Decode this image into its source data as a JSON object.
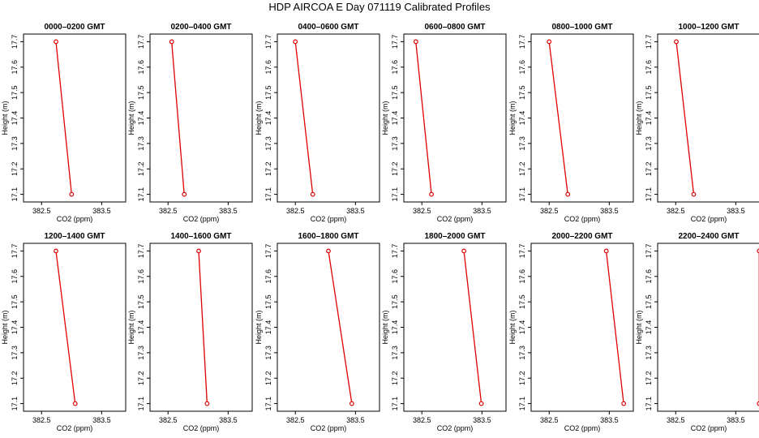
{
  "figure": {
    "title": "HDP  AIRCOA E  Day 071119  Calibrated Profiles"
  },
  "colors": {
    "series": "#dd0000",
    "axes": "#000000",
    "background": "#ffffff"
  },
  "chart_data": [
    {
      "type": "line",
      "title": "0000–0200 GMT",
      "xlabel": "CO2 (ppm)",
      "ylabel": "Height (m)",
      "xlim": [
        382.2,
        383.9
      ],
      "ylim": [
        17.07,
        17.73
      ],
      "xticks": [
        "382.5",
        "383.5"
      ],
      "yticks": [
        "17.1",
        "17.2",
        "17.3",
        "17.4",
        "17.5",
        "17.6",
        "17.7"
      ],
      "points": [
        {
          "x": 382.74,
          "y": 17.7
        },
        {
          "x": 383.0,
          "y": 17.1
        }
      ]
    },
    {
      "type": "line",
      "title": "0200–0400 GMT",
      "xlabel": "CO2 (ppm)",
      "ylabel": "Height (m)",
      "xlim": [
        382.2,
        383.9
      ],
      "ylim": [
        17.07,
        17.73
      ],
      "xticks": [
        "382.5",
        "383.5"
      ],
      "yticks": [
        "17.1",
        "17.2",
        "17.3",
        "17.4",
        "17.5",
        "17.6",
        "17.7"
      ],
      "points": [
        {
          "x": 382.56,
          "y": 17.7
        },
        {
          "x": 382.77,
          "y": 17.1
        }
      ]
    },
    {
      "type": "line",
      "title": "0400–0600 GMT",
      "xlabel": "CO2 (ppm)",
      "ylabel": "Height (m)",
      "xlim": [
        382.2,
        383.9
      ],
      "ylim": [
        17.07,
        17.73
      ],
      "xticks": [
        "382.5",
        "383.5"
      ],
      "yticks": [
        "17.1",
        "17.2",
        "17.3",
        "17.4",
        "17.5",
        "17.6",
        "17.7"
      ],
      "points": [
        {
          "x": 382.5,
          "y": 17.7
        },
        {
          "x": 382.79,
          "y": 17.1
        }
      ]
    },
    {
      "type": "line",
      "title": "0600–0800 GMT",
      "xlabel": "CO2 (ppm)",
      "ylabel": "Height (m)",
      "xlim": [
        382.2,
        383.9
      ],
      "ylim": [
        17.07,
        17.73
      ],
      "xticks": [
        "382.5",
        "383.5"
      ],
      "yticks": [
        "17.1",
        "17.2",
        "17.3",
        "17.4",
        "17.5",
        "17.6",
        "17.7"
      ],
      "points": [
        {
          "x": 382.4,
          "y": 17.7
        },
        {
          "x": 382.66,
          "y": 17.1
        }
      ]
    },
    {
      "type": "line",
      "title": "0800–1000 GMT",
      "xlabel": "CO2 (ppm)",
      "ylabel": "Height (m)",
      "xlim": [
        382.2,
        383.9
      ],
      "ylim": [
        17.07,
        17.73
      ],
      "xticks": [
        "382.5",
        "383.5"
      ],
      "yticks": [
        "17.1",
        "17.2",
        "17.3",
        "17.4",
        "17.5",
        "17.6",
        "17.7"
      ],
      "points": [
        {
          "x": 382.5,
          "y": 17.7
        },
        {
          "x": 382.81,
          "y": 17.1
        }
      ]
    },
    {
      "type": "line",
      "title": "1000–1200 GMT",
      "xlabel": "CO2 (ppm)",
      "ylabel": "Height (m)",
      "xlim": [
        382.2,
        383.9
      ],
      "ylim": [
        17.07,
        17.73
      ],
      "xticks": [
        "382.5",
        "383.5"
      ],
      "yticks": [
        "17.1",
        "17.2",
        "17.3",
        "17.4",
        "17.5",
        "17.6",
        "17.7"
      ],
      "points": [
        {
          "x": 382.51,
          "y": 17.7
        },
        {
          "x": 382.8,
          "y": 17.1
        }
      ]
    },
    {
      "type": "line",
      "title": "1200–1400 GMT",
      "xlabel": "CO2 (ppm)",
      "ylabel": "Height (m)",
      "xlim": [
        382.2,
        383.9
      ],
      "ylim": [
        17.07,
        17.73
      ],
      "xticks": [
        "382.5",
        "383.5"
      ],
      "yticks": [
        "17.1",
        "17.2",
        "17.3",
        "17.4",
        "17.5",
        "17.6",
        "17.7"
      ],
      "points": [
        {
          "x": 382.74,
          "y": 17.7
        },
        {
          "x": 383.06,
          "y": 17.1
        }
      ]
    },
    {
      "type": "line",
      "title": "1400–1600 GMT",
      "xlabel": "CO2 (ppm)",
      "ylabel": "Height (m)",
      "xlim": [
        382.2,
        383.9
      ],
      "ylim": [
        17.07,
        17.73
      ],
      "xticks": [
        "382.5",
        "383.5"
      ],
      "yticks": [
        "17.1",
        "17.2",
        "17.3",
        "17.4",
        "17.5",
        "17.6",
        "17.7"
      ],
      "points": [
        {
          "x": 383.01,
          "y": 17.7
        },
        {
          "x": 383.15,
          "y": 17.1
        }
      ]
    },
    {
      "type": "line",
      "title": "1600–1800 GMT",
      "xlabel": "CO2 (ppm)",
      "ylabel": "Height (m)",
      "xlim": [
        382.2,
        383.9
      ],
      "ylim": [
        17.07,
        17.73
      ],
      "xticks": [
        "382.5",
        "383.5"
      ],
      "yticks": [
        "17.1",
        "17.2",
        "17.3",
        "17.4",
        "17.5",
        "17.6",
        "17.7"
      ],
      "points": [
        {
          "x": 383.05,
          "y": 17.7
        },
        {
          "x": 383.44,
          "y": 17.1
        }
      ]
    },
    {
      "type": "line",
      "title": "1800–2000 GMT",
      "xlabel": "CO2 (ppm)",
      "ylabel": "Height (m)",
      "xlim": [
        382.2,
        383.9
      ],
      "ylim": [
        17.07,
        17.73
      ],
      "xticks": [
        "382.5",
        "383.5"
      ],
      "yticks": [
        "17.1",
        "17.2",
        "17.3",
        "17.4",
        "17.5",
        "17.6",
        "17.7"
      ],
      "points": [
        {
          "x": 383.2,
          "y": 17.7
        },
        {
          "x": 383.49,
          "y": 17.1
        }
      ]
    },
    {
      "type": "line",
      "title": "2000–2200 GMT",
      "xlabel": "CO2 (ppm)",
      "ylabel": "Height (m)",
      "xlim": [
        382.2,
        383.9
      ],
      "ylim": [
        17.07,
        17.73
      ],
      "xticks": [
        "382.5",
        "383.5"
      ],
      "yticks": [
        "17.1",
        "17.2",
        "17.3",
        "17.4",
        "17.5",
        "17.6",
        "17.7"
      ],
      "points": [
        {
          "x": 383.45,
          "y": 17.7
        },
        {
          "x": 383.74,
          "y": 17.1
        }
      ]
    },
    {
      "type": "line",
      "title": "2200–2400 GMT",
      "xlabel": "CO2 (ppm)",
      "ylabel": "Height (m)",
      "xlim": [
        382.2,
        383.9
      ],
      "ylim": [
        17.07,
        17.73
      ],
      "xticks": [
        "382.5",
        "383.5"
      ],
      "yticks": [
        "17.1",
        "17.2",
        "17.3",
        "17.4",
        "17.5",
        "17.6",
        "17.7"
      ],
      "points": [
        {
          "x": 383.89,
          "y": 17.7
        },
        {
          "x": 383.89,
          "y": 17.1
        }
      ]
    }
  ]
}
